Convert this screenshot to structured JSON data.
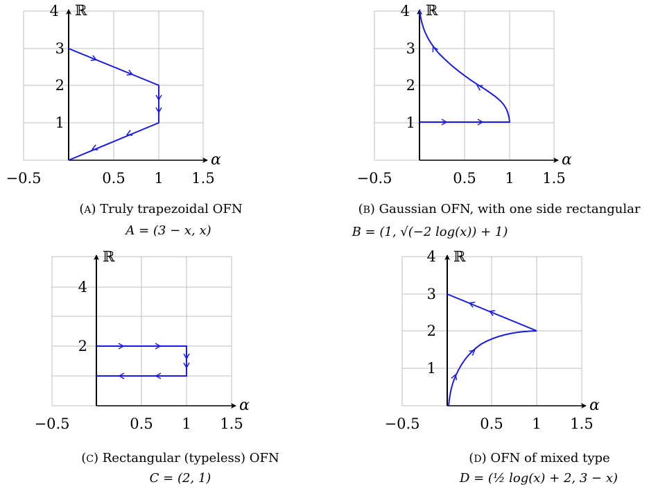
{
  "panels": [
    {
      "id": "a",
      "caption_tag": "A",
      "caption_title": "Truly trapezoidal OFN",
      "formula": "A = (3 − x, x)",
      "x_axis_label": "α",
      "y_axis_label": "ℝ",
      "x_ticks": [
        "−0.5",
        "0.5",
        "1",
        "1.5"
      ],
      "y_ticks": [
        "1",
        "2",
        "3",
        "4"
      ]
    },
    {
      "id": "b",
      "caption_tag": "B",
      "caption_title": "Gaussian OFN, with one side rectangular",
      "formula": "B = (1, √(−2 log(x)) + 1)",
      "x_axis_label": "α",
      "y_axis_label": "ℝ",
      "x_ticks": [
        "−0.5",
        "0.5",
        "1",
        "1.5"
      ],
      "y_ticks": [
        "1",
        "2",
        "3",
        "4"
      ]
    },
    {
      "id": "c",
      "caption_tag": "C",
      "caption_title": "Rectangular (typeless) OFN",
      "formula": "C = (2, 1)",
      "x_axis_label": "α",
      "y_axis_label": "ℝ",
      "x_ticks": [
        "−0.5",
        "0.5",
        "1",
        "1.5"
      ],
      "y_ticks": [
        "2",
        "4"
      ]
    },
    {
      "id": "d",
      "caption_tag": "D",
      "caption_title": "OFN of mixed type",
      "formula": "D = (½ log(x) + 2, 3 − x)",
      "x_axis_label": "α",
      "y_axis_label": "ℝ",
      "x_ticks": [
        "−0.5",
        "0.5",
        "1",
        "1.5"
      ],
      "y_ticks": [
        "1",
        "2",
        "3",
        "4"
      ]
    }
  ],
  "colors": {
    "curve": "#1a1ae6",
    "grid": "#bfbfbf",
    "axis": "#000000"
  }
}
